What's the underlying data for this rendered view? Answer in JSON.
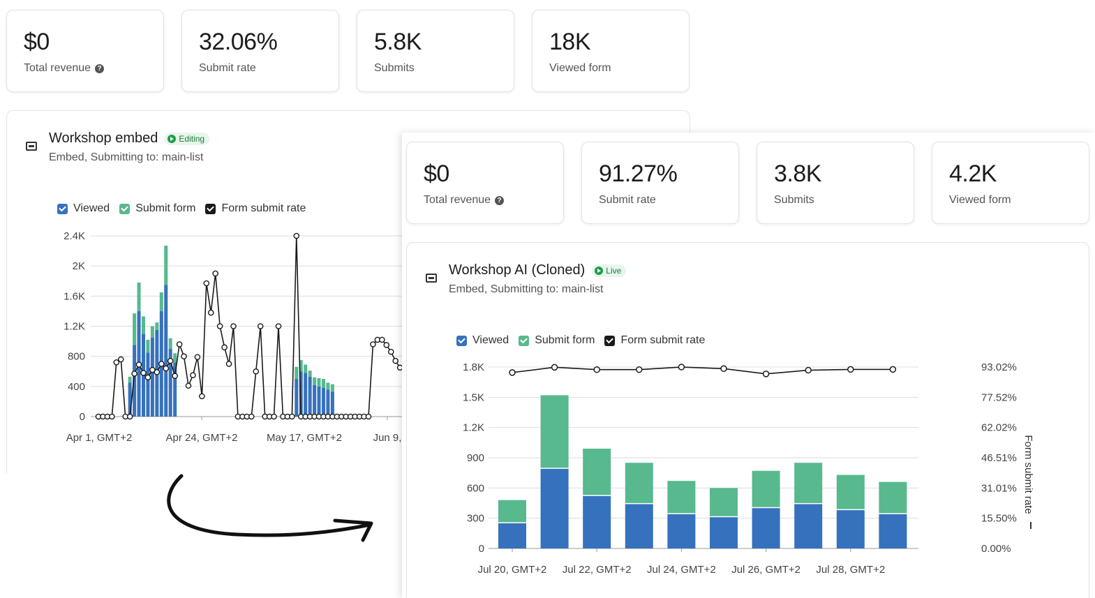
{
  "colors": {
    "viewed": "#3671bd",
    "submit": "#57b98d",
    "rate_line": "#1a1a1a",
    "live": "#1f9d4a",
    "editing": "#1f9d4a"
  },
  "back": {
    "stats": [
      {
        "value": "$0",
        "label": "Total revenue",
        "icon": "help-icon"
      },
      {
        "value": "32.06%",
        "label": "Submit rate"
      },
      {
        "value": "5.8K",
        "label": "Submits"
      },
      {
        "value": "18K",
        "label": "Viewed form"
      }
    ],
    "panel": {
      "title": "Workshop embed",
      "badge": "Editing",
      "subtitle": "Embed, Submitting to: main-list",
      "icon": "embed-icon"
    },
    "legend": [
      "Viewed",
      "Submit form",
      "Form submit rate"
    ],
    "chart_data": {
      "type": "bar",
      "y_ticks": [
        "2.4K",
        "2K",
        "1.6K",
        "1.2K",
        "800",
        "400",
        "0"
      ],
      "x_ticks": [
        "Apr 1, GMT+2",
        "Apr 24, GMT+2",
        "May 17, GMT+2",
        "Jun 9,"
      ],
      "ylim": [
        0,
        2400
      ],
      "bars": [
        {
          "i": 7,
          "viewed": 450,
          "submit": 80
        },
        {
          "i": 8,
          "viewed": 950,
          "submit": 420
        },
        {
          "i": 9,
          "viewed": 1400,
          "submit": 380
        },
        {
          "i": 10,
          "viewed": 1100,
          "submit": 230
        },
        {
          "i": 11,
          "viewed": 850,
          "submit": 170
        },
        {
          "i": 12,
          "viewed": 1050,
          "submit": 150
        },
        {
          "i": 13,
          "viewed": 1150,
          "submit": 100
        },
        {
          "i": 14,
          "viewed": 1400,
          "submit": 250
        },
        {
          "i": 15,
          "viewed": 1750,
          "submit": 520
        },
        {
          "i": 16,
          "viewed": 900,
          "submit": 140
        },
        {
          "i": 17,
          "viewed": 720,
          "submit": 120
        },
        {
          "i": 44,
          "viewed": 500,
          "submit": 160
        },
        {
          "i": 45,
          "viewed": 600,
          "submit": 150
        },
        {
          "i": 46,
          "viewed": 580,
          "submit": 110
        },
        {
          "i": 47,
          "viewed": 530,
          "submit": 80
        },
        {
          "i": 48,
          "viewed": 420,
          "submit": 100
        },
        {
          "i": 49,
          "viewed": 400,
          "submit": 110
        },
        {
          "i": 50,
          "viewed": 380,
          "submit": 120
        },
        {
          "i": 51,
          "viewed": 360,
          "submit": 90
        },
        {
          "i": 52,
          "viewed": 330,
          "submit": 100
        }
      ],
      "rate_points": [
        0,
        0,
        0,
        0,
        720,
        760,
        0,
        0,
        570,
        690,
        580,
        520,
        620,
        590,
        700,
        640,
        740,
        540,
        960,
        800,
        410,
        550,
        790,
        270,
        1770,
        1380,
        1900,
        1200,
        920,
        700,
        1200,
        0,
        0,
        0,
        0,
        600,
        1200,
        0,
        0,
        0,
        1200,
        0,
        0,
        0,
        2400,
        0,
        0,
        0,
        0,
        0,
        0,
        0,
        0,
        0,
        0,
        0,
        0,
        0,
        0,
        0,
        0,
        960,
        1020,
        1020,
        950,
        860,
        740,
        650
      ]
    }
  },
  "front": {
    "stats": [
      {
        "value": "$0",
        "label": "Total revenue",
        "icon": "help-icon"
      },
      {
        "value": "91.27%",
        "label": "Submit rate"
      },
      {
        "value": "3.8K",
        "label": "Submits"
      },
      {
        "value": "4.2K",
        "label": "Viewed form"
      }
    ],
    "panel": {
      "title": "Workshop AI (Cloned)",
      "badge": "Live",
      "subtitle": "Embed, Submitting to: main-list",
      "icon": "embed-icon"
    },
    "legend": [
      "Viewed",
      "Submit form",
      "Form submit rate"
    ],
    "chart_data": {
      "type": "bar",
      "series": [
        {
          "name": "Viewed",
          "values": [
            250,
            790,
            520,
            440,
            340,
            310,
            400,
            440,
            380,
            340
          ]
        },
        {
          "name": "Submit form",
          "values": [
            230,
            730,
            470,
            410,
            330,
            290,
            370,
            410,
            350,
            320
          ]
        },
        {
          "name": "Form submit rate",
          "axis": "right",
          "values": [
            90.2,
            92.9,
            91.7,
            91.7,
            93.0,
            92.2,
            89.5,
            91.4,
            91.8,
            91.8
          ]
        }
      ],
      "x_ticks": [
        "Jul 20, GMT+2",
        "Jul 22, GMT+2",
        "Jul 24, GMT+2",
        "Jul 26, GMT+2",
        "Jul 28, GMT+2"
      ],
      "y_ticks_left": [
        "1.8K",
        "1.5K",
        "1.2K",
        "900",
        "600",
        "300",
        "0"
      ],
      "y_ticks_right": [
        "93.02%",
        "77.52%",
        "62.02%",
        "46.51%",
        "31.01%",
        "15.50%",
        "0.00%"
      ],
      "ylabel_right": "Form submit rate",
      "ylim": [
        0,
        1800
      ],
      "ylim_right": [
        0,
        93.02
      ]
    }
  }
}
